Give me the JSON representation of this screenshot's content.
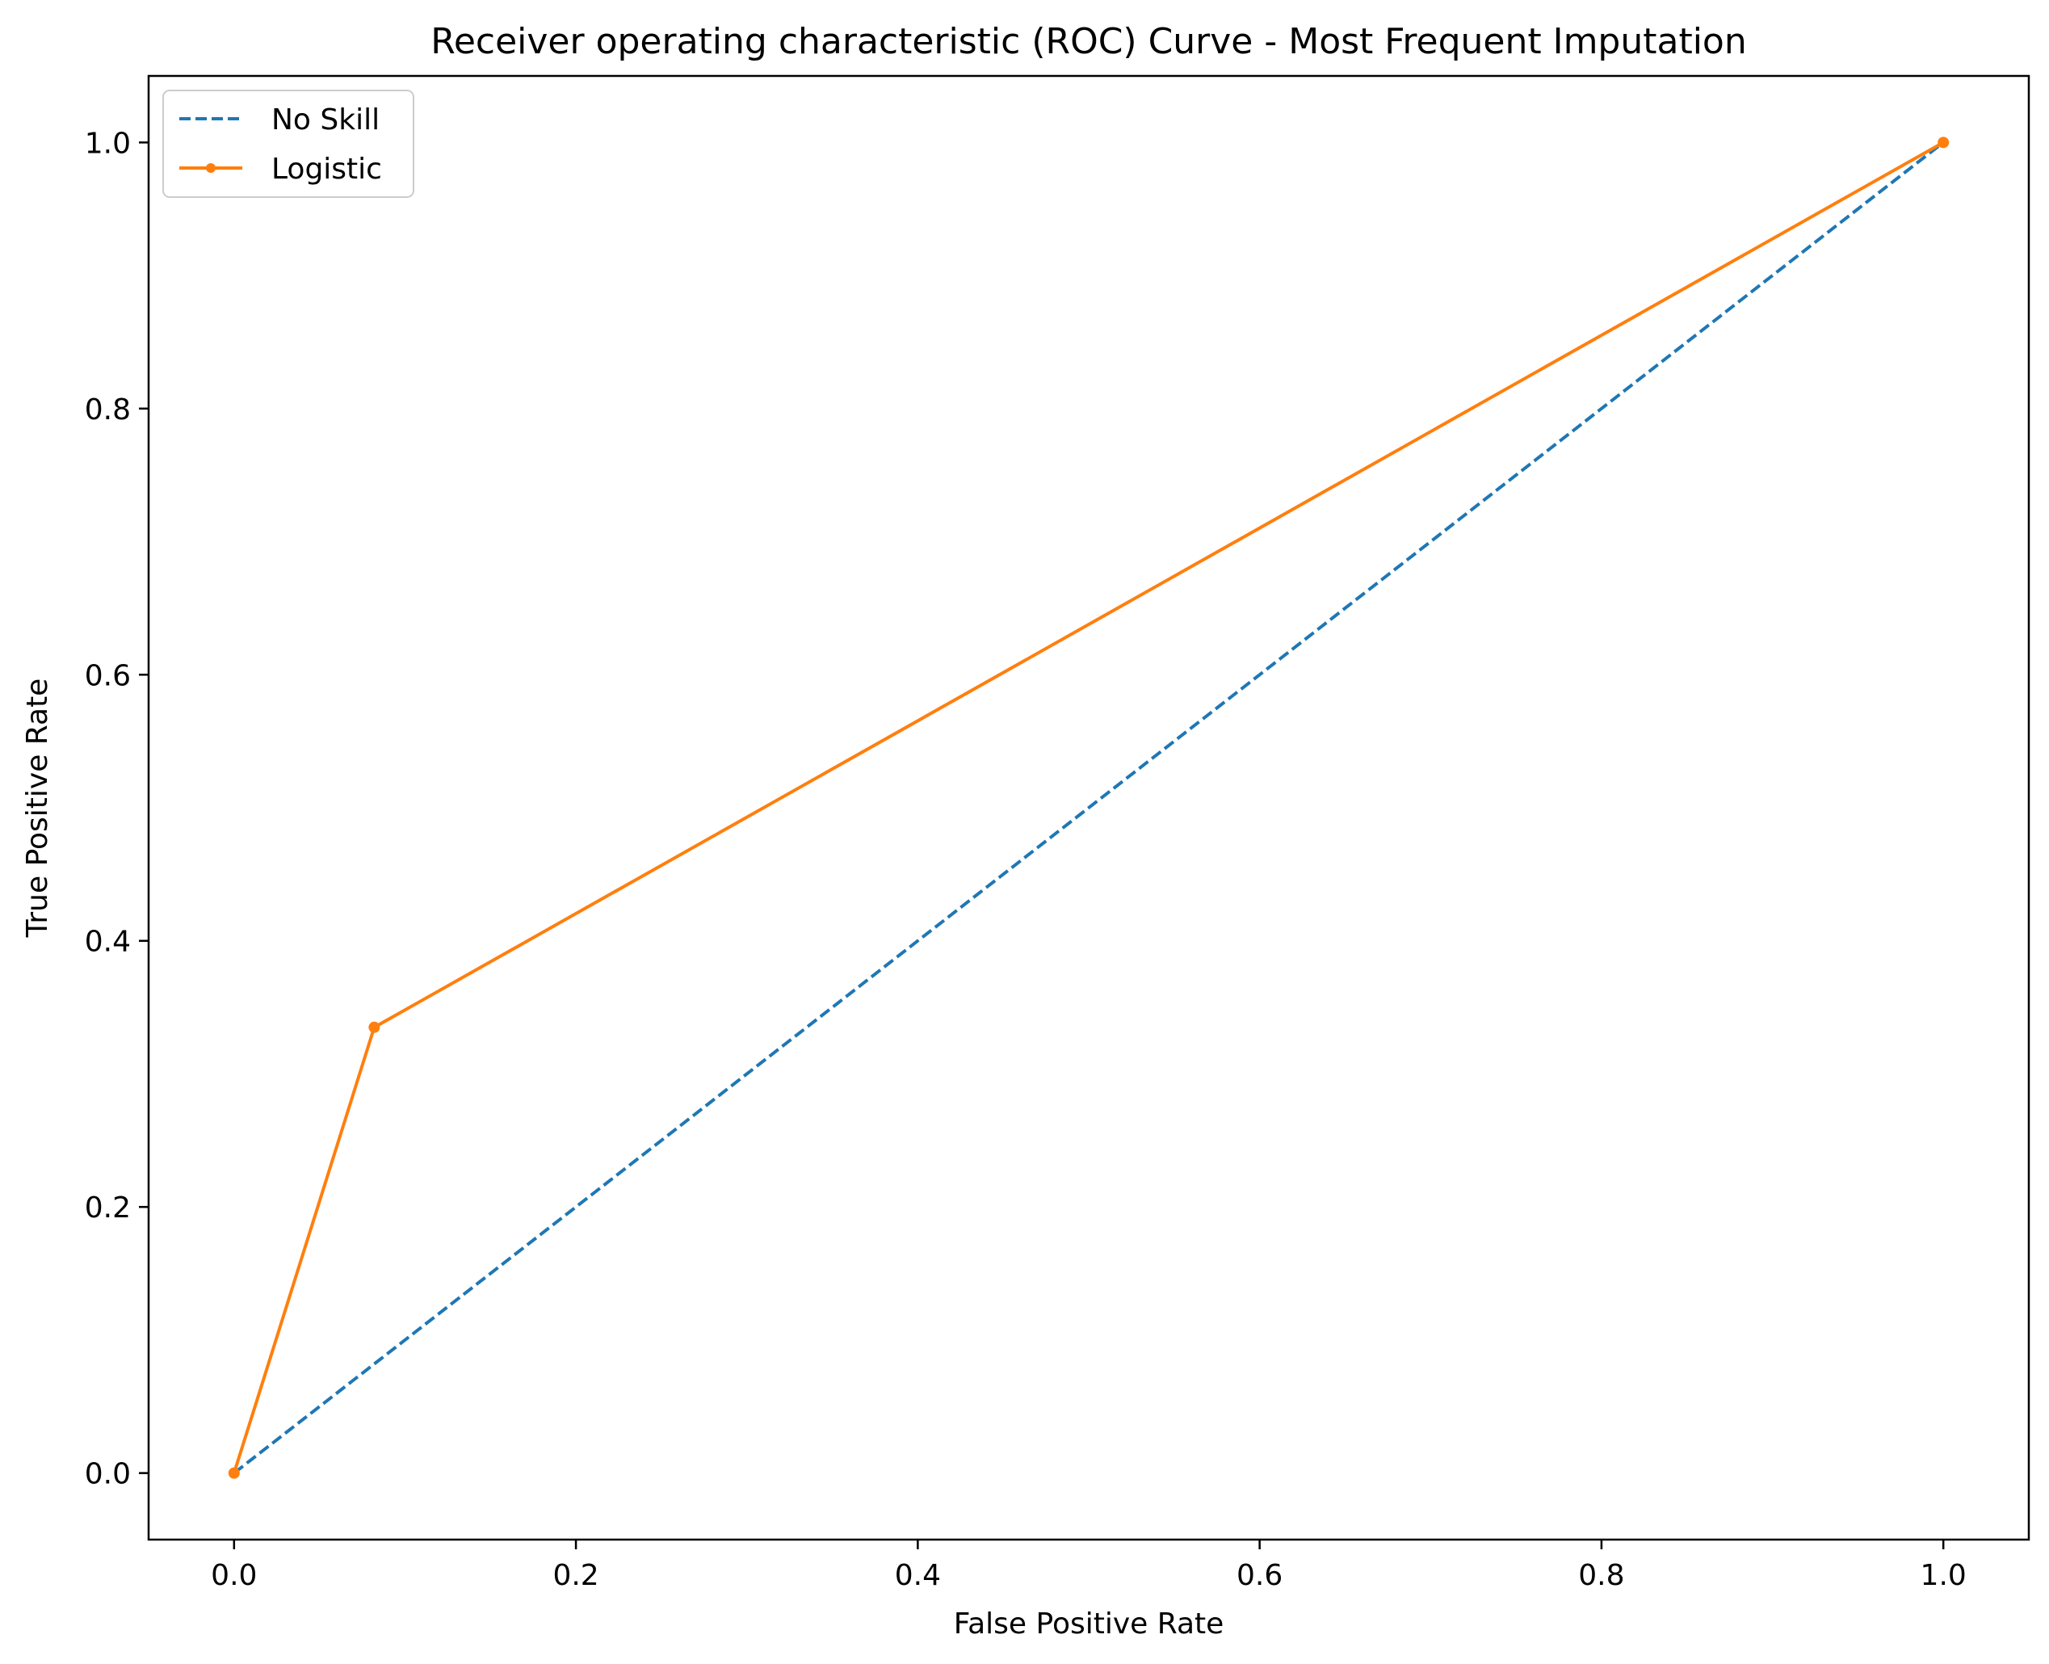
{
  "chart_data": {
    "type": "line",
    "title": "Receiver operating characteristic (ROC) Curve - Most Frequent Imputation",
    "xlabel": "False Positive Rate",
    "ylabel": "True Positive Rate",
    "xlim": [
      -0.05,
      1.05
    ],
    "ylim": [
      -0.05,
      1.05
    ],
    "xticks": [
      "0.0",
      "0.2",
      "0.4",
      "0.6",
      "0.8",
      "1.0"
    ],
    "yticks": [
      "0.0",
      "0.2",
      "0.4",
      "0.6",
      "0.8",
      "1.0"
    ],
    "grid": false,
    "legend_position": "top-left",
    "series": [
      {
        "name": "No Skill",
        "style": "dashed",
        "markers": false,
        "color": "#1f77b4",
        "x": [
          0,
          1
        ],
        "y": [
          0,
          1
        ]
      },
      {
        "name": "Logistic",
        "style": "solid",
        "markers": true,
        "color": "#ff7f0e",
        "x": [
          0,
          0.082,
          1
        ],
        "y": [
          0,
          0.335,
          1
        ]
      }
    ]
  }
}
